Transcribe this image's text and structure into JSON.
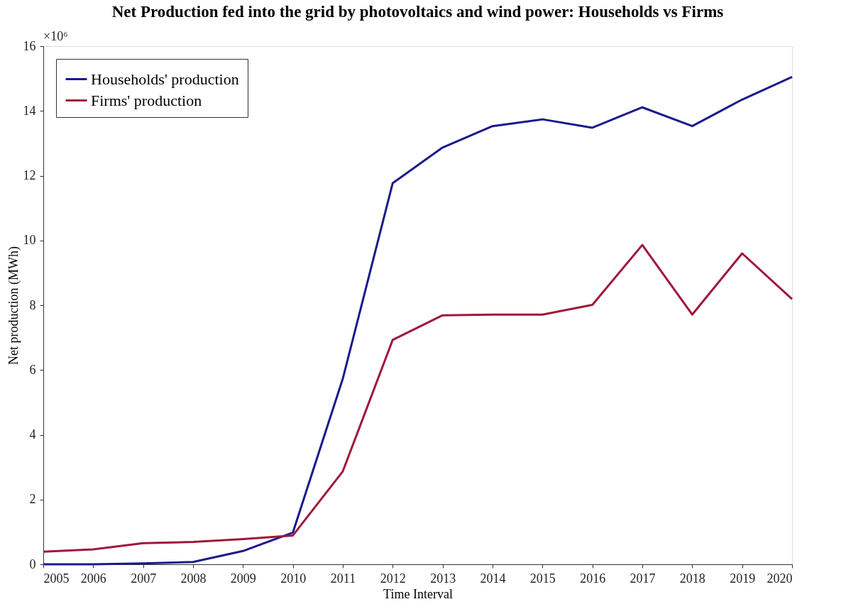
{
  "chart_data": {
    "type": "line",
    "title": "Net Production fed into the grid by photovoltaics and wind power: Households vs Firms",
    "xlabel": "Time Interval",
    "ylabel": "Net production (MWh)",
    "x": [
      2005,
      2006,
      2007,
      2008,
      2009,
      2010,
      2011,
      2012,
      2013,
      2014,
      2015,
      2016,
      2017,
      2018,
      2019,
      2020
    ],
    "series": [
      {
        "name": "Households' production",
        "color": "#1a1a8c",
        "values": [
          0.0,
          0.0,
          0.03,
          0.07,
          0.41,
          0.98,
          5.73,
          11.77,
          12.87,
          13.53,
          13.74,
          13.48,
          14.11,
          13.53,
          14.35,
          15.05
        ]
      },
      {
        "name": "Firms' production",
        "color": "#a0173a",
        "values": [
          0.39,
          0.46,
          0.65,
          0.69,
          0.78,
          0.89,
          2.87,
          6.93,
          7.69,
          7.71,
          7.71,
          8.01,
          9.86,
          7.71,
          9.6,
          8.19
        ]
      }
    ],
    "xlim": [
      2005,
      2020
    ],
    "xticks": [
      2005,
      2006,
      2007,
      2008,
      2009,
      2010,
      2011,
      2012,
      2013,
      2014,
      2015,
      2016,
      2017,
      2018,
      2019,
      2020
    ],
    "ylim": [
      0,
      16
    ],
    "yticks": [
      0,
      2,
      4,
      6,
      8,
      10,
      12,
      14,
      16
    ],
    "annotations": [
      "×10⁶"
    ],
    "grid": false,
    "legend": "top left",
    "marker": "none",
    "line_style": "solid"
  }
}
